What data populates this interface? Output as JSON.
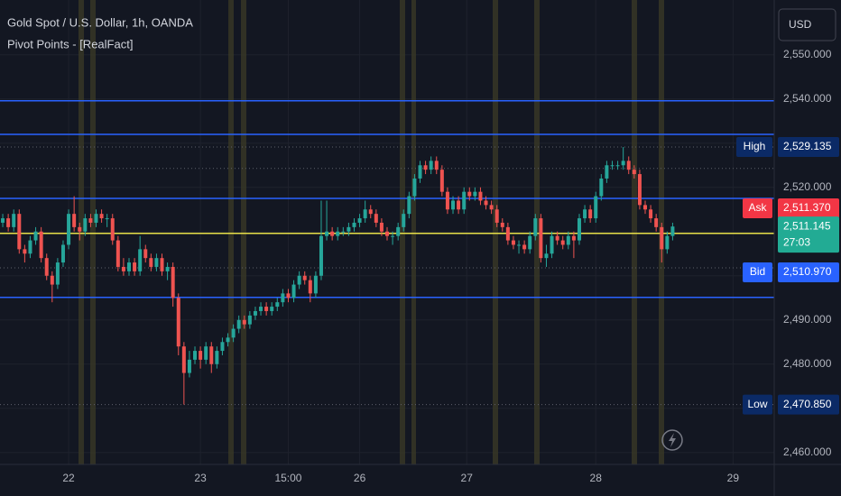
{
  "chart_data": {
    "type": "candlestick",
    "title": "Gold Spot / U.S. Dollar, 1h, OANDA",
    "subtitle": "Pivot Points - [RealFact]",
    "currency": "USD",
    "up_color": "#26a69a",
    "down_color": "#ef5350",
    "grid": true,
    "grid_color": "#1e222d",
    "x": [
      -12,
      -11,
      -10,
      -9,
      -8,
      -7,
      -6,
      -5,
      -4,
      -3,
      -2,
      -1,
      0,
      1,
      2,
      3,
      4,
      5,
      6,
      7,
      8,
      9,
      10,
      11,
      12,
      13,
      14,
      15,
      16,
      17,
      18,
      19,
      20,
      21,
      22,
      23,
      24,
      25,
      26,
      27,
      28,
      29,
      30,
      31,
      32,
      33,
      34,
      35,
      36,
      37,
      38,
      39,
      40,
      41,
      42,
      43,
      44,
      45,
      46,
      47,
      48,
      49,
      50,
      51,
      52,
      53,
      54,
      55,
      56,
      57,
      58,
      59,
      60,
      61,
      62,
      63,
      64,
      65,
      66,
      67,
      68,
      69,
      70,
      71,
      72,
      73,
      74,
      75,
      76,
      77,
      78,
      79,
      80,
      81,
      82,
      83,
      84,
      85,
      86,
      87,
      88,
      89,
      90,
      91,
      92,
      93,
      94,
      95,
      96,
      97,
      98,
      99,
      100,
      101,
      102,
      103,
      104,
      105,
      106,
      107,
      108,
      109,
      110
    ],
    "open": [
      2512,
      2513,
      2511,
      2514,
      2506,
      2505,
      2508,
      2510,
      2504,
      2500,
      2498,
      2503,
      2507,
      2514,
      2511,
      2510,
      2513,
      2512,
      2514,
      2513,
      2513,
      2508,
      2502,
      2501,
      2503,
      2501,
      2506,
      2504,
      2502,
      2504,
      2501,
      2502,
      2495,
      2484,
      2478,
      2481,
      2483,
      2481,
      2484,
      2480,
      2483,
      2485,
      2486,
      2488,
      2490,
      2489,
      2491,
      2492,
      2493,
      2492,
      2493,
      2494,
      2496,
      2495,
      2498,
      2500,
      2499,
      2496,
      2500,
      2509,
      2510,
      2509,
      2510,
      2510,
      2511,
      2512,
      2513,
      2515,
      2514,
      2512,
      2510,
      2509,
      2509,
      2511,
      2514,
      2518,
      2522,
      2525,
      2524,
      2526,
      2524,
      2519,
      2515,
      2517,
      2515,
      2519,
      2518,
      2519,
      2517,
      2516,
      2515,
      2512,
      2511,
      2508,
      2507,
      2507,
      2506,
      2509,
      2513,
      2504,
      2505,
      2509,
      2508,
      2507,
      2509,
      2508,
      2513,
      2515,
      2513,
      2518,
      2522,
      2525,
      2525,
      2525,
      2526,
      2524,
      2523,
      2516,
      2515,
      2513,
      2511,
      2506,
      2509
    ],
    "high": [
      2514,
      2514,
      2515,
      2515,
      2507,
      2509,
      2511,
      2511,
      2505,
      2501,
      2504,
      2508,
      2515,
      2518,
      2512,
      2514,
      2514,
      2515,
      2515,
      2514,
      2514,
      2509,
      2504,
      2504,
      2504,
      2509,
      2507,
      2505,
      2505,
      2505,
      2503,
      2503,
      2496,
      2485,
      2483,
      2484,
      2484,
      2485,
      2485,
      2484,
      2486,
      2487,
      2489,
      2491,
      2491,
      2492,
      2493,
      2494,
      2494,
      2494,
      2495,
      2497,
      2497,
      2499,
      2501,
      2501,
      2500,
      2501,
      2517,
      2517,
      2511,
      2511,
      2511,
      2512,
      2513,
      2514,
      2517,
      2516,
      2515,
      2513,
      2511,
      2510,
      2512,
      2515,
      2519,
      2523,
      2526,
      2526,
      2527,
      2527,
      2525,
      2520,
      2518,
      2518,
      2520,
      2520,
      2520,
      2520,
      2518,
      2517,
      2516,
      2513,
      2512,
      2509,
      2508,
      2508,
      2510,
      2514,
      2514,
      2507,
      2510,
      2510,
      2509,
      2510,
      2510,
      2514,
      2516,
      2516,
      2519,
      2523,
      2526,
      2526,
      2526,
      2529.135,
      2527,
      2525,
      2524,
      2517,
      2516,
      2514,
      2512,
      2510,
      2512
    ],
    "low": [
      2511,
      2510,
      2510,
      2505,
      2503,
      2504,
      2507,
      2503,
      2499,
      2494,
      2497,
      2502,
      2506,
      2510,
      2508,
      2509,
      2511,
      2511,
      2512,
      2511,
      2507,
      2501,
      2500,
      2500,
      2500,
      2500,
      2503,
      2501,
      2501,
      2500,
      2499,
      2493,
      2482,
      2470.85,
      2477,
      2480,
      2479,
      2480,
      2478,
      2479,
      2482,
      2484,
      2485,
      2487,
      2488,
      2488,
      2490,
      2491,
      2491,
      2491,
      2492,
      2493,
      2494,
      2494,
      2497,
      2498,
      2494,
      2495,
      2499,
      2508,
      2508,
      2508,
      2509,
      2509,
      2510,
      2511,
      2512,
      2513,
      2511,
      2509,
      2508,
      2507,
      2508,
      2510,
      2513,
      2517,
      2521,
      2523,
      2523,
      2523,
      2518,
      2514,
      2514,
      2514,
      2514,
      2517,
      2517,
      2516,
      2515,
      2514,
      2511,
      2510,
      2507,
      2506,
      2505,
      2505,
      2505,
      2508,
      2503,
      2502,
      2504,
      2507,
      2506,
      2506,
      2504,
      2507,
      2512,
      2512,
      2512,
      2517,
      2521,
      2524,
      2524,
      2524,
      2523,
      2522,
      2515,
      2514,
      2512,
      2510,
      2503,
      2505,
      2508
    ],
    "close": [
      2513,
      2511,
      2514,
      2506,
      2505,
      2508,
      2510,
      2504,
      2500,
      2498,
      2503,
      2507,
      2514,
      2511,
      2510,
      2513,
      2512,
      2514,
      2513,
      2513,
      2508,
      2502,
      2501,
      2503,
      2501,
      2506,
      2504,
      2502,
      2504,
      2501,
      2502,
      2495,
      2484,
      2478,
      2481,
      2483,
      2481,
      2484,
      2480,
      2483,
      2485,
      2486,
      2488,
      2490,
      2489,
      2491,
      2492,
      2493,
      2492,
      2493,
      2494,
      2496,
      2495,
      2498,
      2500,
      2499,
      2496,
      2500,
      2509,
      2510,
      2509,
      2510,
      2510,
      2511,
      2512,
      2513,
      2515,
      2514,
      2512,
      2510,
      2509,
      2509,
      2511,
      2514,
      2518,
      2522,
      2525,
      2524,
      2526,
      2524,
      2519,
      2515,
      2517,
      2515,
      2519,
      2518,
      2519,
      2517,
      2516,
      2515,
      2512,
      2511,
      2508,
      2507,
      2507,
      2506,
      2509,
      2513,
      2504,
      2505,
      2509,
      2508,
      2507,
      2509,
      2508,
      2513,
      2515,
      2513,
      2518,
      2522,
      2525,
      2525,
      2525,
      2526,
      2524,
      2523,
      2516,
      2515,
      2513,
      2511,
      2506,
      2509,
      2511.145
    ],
    "xlim": [
      -12.5,
      128.5
    ],
    "xticks": [
      {
        "value": 0,
        "label": "22"
      },
      {
        "value": 24,
        "label": "23"
      },
      {
        "value": 40,
        "label": "15:00"
      },
      {
        "value": 53,
        "label": "26"
      },
      {
        "value": 72.5,
        "label": "27"
      },
      {
        "value": 96,
        "label": "28"
      },
      {
        "value": 121,
        "label": "29"
      }
    ],
    "ylim": [
      2457.3,
      2562.4
    ],
    "yticks": [
      {
        "value": 2460,
        "label": "2,460.000"
      },
      {
        "value": 2470,
        "label": "2,470.000"
      },
      {
        "value": 2480,
        "label": "2,480.000"
      },
      {
        "value": 2490,
        "label": "2,490.000"
      },
      {
        "value": 2500,
        "label": "2,500.000"
      },
      {
        "value": 2510,
        "label": "2,510.000"
      },
      {
        "value": 2520,
        "label": "2,520.000"
      },
      {
        "value": 2530,
        "label": "2,530.000"
      },
      {
        "value": 2540,
        "label": "2,540.000"
      },
      {
        "value": 2550,
        "label": "2,550.000"
      }
    ],
    "pivot_levels": [
      {
        "value": 2539.6,
        "color": "#2962ff"
      },
      {
        "value": 2532.0,
        "color": "#2962ff"
      },
      {
        "value": 2517.5,
        "color": "#2962ff"
      },
      {
        "value": 2509.6,
        "color": "#e8e04a"
      },
      {
        "value": 2495.1,
        "color": "#2962ff"
      }
    ],
    "dotted_levels": [
      2524.3,
      2501.8
    ],
    "price_labels": [
      {
        "name": "High",
        "label": "2,529.135",
        "value": 2529.135,
        "color": "#0b2a66",
        "dotted": true
      },
      {
        "name": "Ask",
        "label": "2,511.370",
        "value": 2511.37,
        "color": "#f23645"
      },
      {
        "label": "2,511.145",
        "value": 2511.145,
        "countdown": "27:03",
        "color": "#22ab94"
      },
      {
        "name": "Bid",
        "label": "2,510.970",
        "value": 2510.97,
        "color": "#2962ff"
      },
      {
        "name": "Low",
        "label": "2,470.850",
        "value": 2470.85,
        "color": "#0b2a66",
        "dotted": true
      }
    ]
  }
}
